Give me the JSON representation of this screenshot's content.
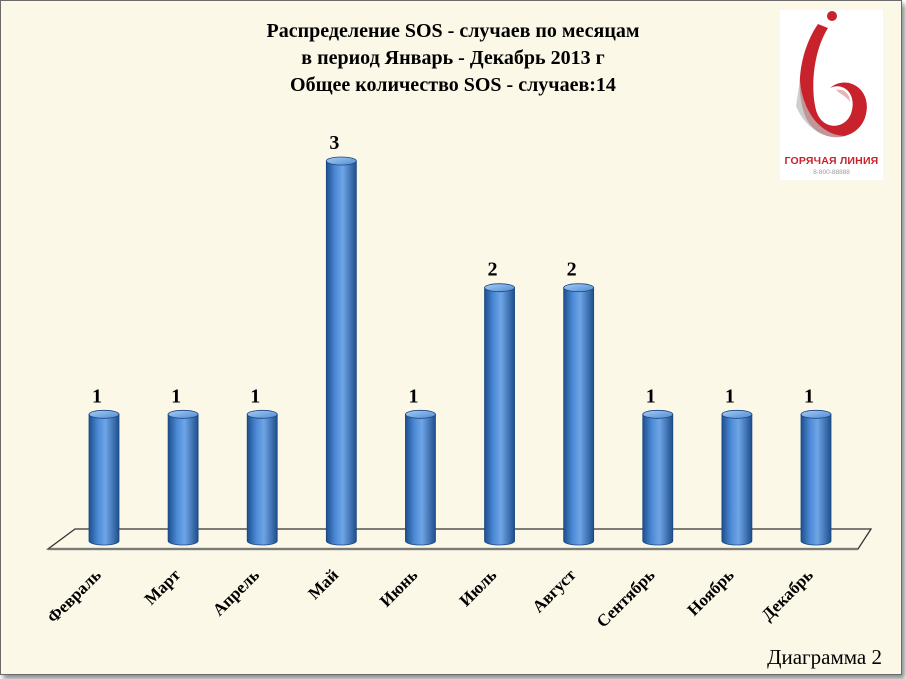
{
  "title": {
    "line1": "Распределение SOS - случаев по месяцам",
    "line2": "в период Январь - Декабрь 2013 г",
    "line3": "Общее количество SOS - случаев:14"
  },
  "logo": {
    "name": "ГОРЯЧАЯ ЛИНИЯ",
    "phone": "8-800-88888"
  },
  "caption": "Диаграмма 2",
  "colors": {
    "bar": "#3f7fcc",
    "bar_dark": "#1e4f8e",
    "bar_light": "#8fbcef",
    "logo_red": "#c8232c",
    "background": "#fbf8e8"
  },
  "chart_data": {
    "type": "bar",
    "categories": [
      "Февраль",
      "Март",
      "Апрель",
      "Май",
      "Июнь",
      "Июль",
      "Август",
      "Сентябрь",
      "Ноябрь",
      "Декабрь"
    ],
    "values": [
      1,
      1,
      1,
      3,
      1,
      2,
      2,
      1,
      1,
      1
    ],
    "data_labels": [
      "1",
      "1",
      "1",
      "3",
      "1",
      "2",
      "2",
      "1",
      "1",
      "1"
    ],
    "ylim": [
      0,
      3
    ],
    "grid": false,
    "legend": "none",
    "style": "3d-cylinder"
  }
}
